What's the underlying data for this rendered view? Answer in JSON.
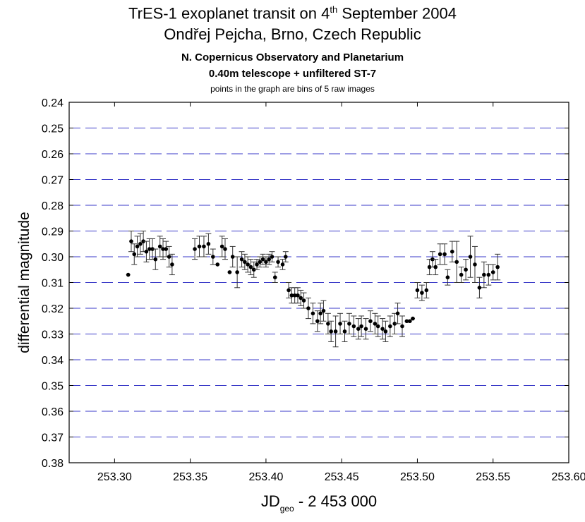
{
  "titles": {
    "line1_pre": "TrES-1 exoplanet transit on 4",
    "line1_sup": "th",
    "line1_post": " September 2004",
    "line2": "Ondřej Pejcha, Brno, Czech Republic",
    "line3": "N. Copernicus Observatory and Planetarium",
    "line4": "0.40m telescope + unfiltered ST-7",
    "line5": "points in the graph are bins of 5 raw images"
  },
  "chart_data": {
    "type": "scatter",
    "xlabel_main": "JD",
    "xlabel_sub": "geo",
    "xlabel_rest": " - 2 453 000",
    "ylabel": "differential magnitude",
    "xlim": [
      253.27,
      253.6
    ],
    "ylim": [
      0.24,
      0.38
    ],
    "y_inverted": true,
    "x_ticks": [
      "253.30",
      "253.35",
      "253.40",
      "253.45",
      "253.50",
      "253.55",
      "253.60"
    ],
    "y_ticks": [
      "0.24",
      "0.25",
      "0.26",
      "0.27",
      "0.28",
      "0.29",
      "0.30",
      "0.31",
      "0.32",
      "0.33",
      "0.34",
      "0.35",
      "0.36",
      "0.37",
      "0.38"
    ],
    "grid": "horizontal dashed",
    "grid_color": "#3a3ac8",
    "points": [
      [
        253.309,
        0.307,
        0.001
      ],
      [
        253.311,
        0.294,
        0.004
      ],
      [
        253.313,
        0.299,
        0.004
      ],
      [
        253.315,
        0.296,
        0.004
      ],
      [
        253.317,
        0.295,
        0.004
      ],
      [
        253.319,
        0.294,
        0.004
      ],
      [
        253.321,
        0.298,
        0.004
      ],
      [
        253.323,
        0.297,
        0.004
      ],
      [
        253.325,
        0.297,
        0.004
      ],
      [
        253.327,
        0.301,
        0.004
      ],
      [
        253.33,
        0.296,
        0.004
      ],
      [
        253.332,
        0.297,
        0.004
      ],
      [
        253.334,
        0.297,
        0.003
      ],
      [
        253.336,
        0.3,
        0.004
      ],
      [
        253.338,
        0.303,
        0.004
      ],
      [
        253.353,
        0.297,
        0.004
      ],
      [
        253.356,
        0.296,
        0.004
      ],
      [
        253.359,
        0.296,
        0.004
      ],
      [
        253.362,
        0.295,
        0.004
      ],
      [
        253.365,
        0.3,
        0.003
      ],
      [
        253.368,
        0.303,
        0.001
      ],
      [
        253.371,
        0.296,
        0.004
      ],
      [
        253.373,
        0.297,
        0.004
      ],
      [
        253.376,
        0.306,
        0.001
      ],
      [
        253.378,
        0.3,
        0.004
      ],
      [
        253.381,
        0.306,
        0.006
      ],
      [
        253.384,
        0.301,
        0.003
      ],
      [
        253.386,
        0.302,
        0.003
      ],
      [
        253.388,
        0.303,
        0.003
      ],
      [
        253.39,
        0.304,
        0.003
      ],
      [
        253.392,
        0.305,
        0.003
      ],
      [
        253.394,
        0.303,
        0.002
      ],
      [
        253.396,
        0.302,
        0.002
      ],
      [
        253.398,
        0.301,
        0.002
      ],
      [
        253.4,
        0.302,
        0.002
      ],
      [
        253.402,
        0.301,
        0.002
      ],
      [
        253.404,
        0.3,
        0.002
      ],
      [
        253.406,
        0.308,
        0.002
      ],
      [
        253.408,
        0.302,
        0.002
      ],
      [
        253.411,
        0.303,
        0.002
      ],
      [
        253.413,
        0.3,
        0.002
      ],
      [
        253.415,
        0.313,
        0.003
      ],
      [
        253.417,
        0.315,
        0.003
      ],
      [
        253.419,
        0.315,
        0.003
      ],
      [
        253.421,
        0.315,
        0.003
      ],
      [
        253.423,
        0.316,
        0.003
      ],
      [
        253.425,
        0.317,
        0.003
      ],
      [
        253.428,
        0.32,
        0.004
      ],
      [
        253.431,
        0.322,
        0.004
      ],
      [
        253.434,
        0.325,
        0.004
      ],
      [
        253.436,
        0.322,
        0.004
      ],
      [
        253.438,
        0.321,
        0.004
      ],
      [
        253.441,
        0.326,
        0.004
      ],
      [
        253.443,
        0.329,
        0.004
      ],
      [
        253.446,
        0.329,
        0.006
      ],
      [
        253.449,
        0.326,
        0.004
      ],
      [
        253.452,
        0.329,
        0.004
      ],
      [
        253.455,
        0.326,
        0.004
      ],
      [
        253.458,
        0.327,
        0.004
      ],
      [
        253.461,
        0.328,
        0.004
      ],
      [
        253.463,
        0.327,
        0.004
      ],
      [
        253.466,
        0.328,
        0.004
      ],
      [
        253.469,
        0.325,
        0.004
      ],
      [
        253.472,
        0.326,
        0.004
      ],
      [
        253.474,
        0.327,
        0.004
      ],
      [
        253.477,
        0.328,
        0.004
      ],
      [
        253.479,
        0.329,
        0.004
      ],
      [
        253.482,
        0.327,
        0.004
      ],
      [
        253.485,
        0.326,
        0.004
      ],
      [
        253.487,
        0.322,
        0.004
      ],
      [
        253.49,
        0.327,
        0.004
      ],
      [
        253.493,
        0.325,
        0.001
      ],
      [
        253.495,
        0.325,
        0.001
      ],
      [
        253.497,
        0.324,
        0.001
      ],
      [
        253.5,
        0.313,
        0.003
      ],
      [
        253.503,
        0.314,
        0.003
      ],
      [
        253.506,
        0.313,
        0.003
      ],
      [
        253.508,
        0.304,
        0.003
      ],
      [
        253.51,
        0.301,
        0.003
      ],
      [
        253.512,
        0.304,
        0.003
      ],
      [
        253.515,
        0.299,
        0.004
      ],
      [
        253.518,
        0.299,
        0.004
      ],
      [
        253.52,
        0.308,
        0.003
      ],
      [
        253.523,
        0.298,
        0.004
      ],
      [
        253.526,
        0.302,
        0.008
      ],
      [
        253.529,
        0.307,
        0.003
      ],
      [
        253.532,
        0.305,
        0.004
      ],
      [
        253.535,
        0.3,
        0.008
      ],
      [
        253.538,
        0.303,
        0.007
      ],
      [
        253.541,
        0.312,
        0.004
      ],
      [
        253.544,
        0.307,
        0.005
      ],
      [
        253.547,
        0.307,
        0.004
      ],
      [
        253.55,
        0.306,
        0.003
      ],
      [
        253.553,
        0.304,
        0.005
      ]
    ]
  }
}
